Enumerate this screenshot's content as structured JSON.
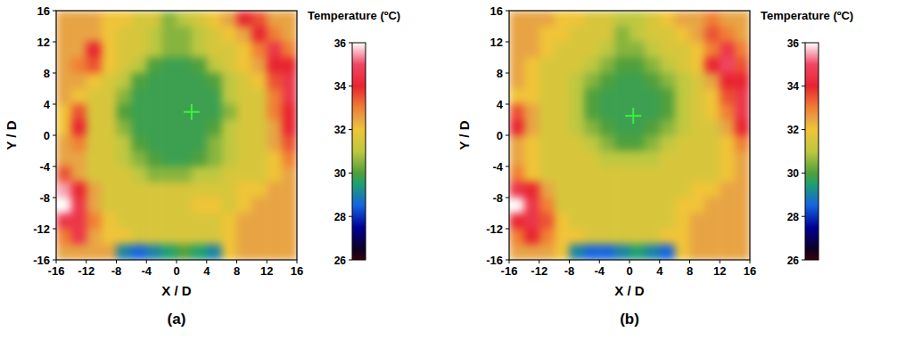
{
  "chart_data": [
    {
      "type": "heatmap",
      "label": "(a)",
      "x_label": "X / D",
      "y_label": "Y / D",
      "xlim": [
        -16,
        16
      ],
      "ylim": [
        -16,
        16
      ],
      "xticks": [
        -16,
        -12,
        -8,
        -4,
        0,
        4,
        8,
        12,
        16
      ],
      "yticks": [
        -16,
        -12,
        -8,
        -4,
        0,
        4,
        8,
        12,
        16
      ],
      "cross": [
        2,
        3
      ],
      "colorbar": {
        "title": "Temperature (ºC)",
        "range": [
          26,
          36
        ],
        "ticks": [
          26,
          28,
          30,
          32,
          34,
          36
        ]
      },
      "cells": [
        [
          32.5,
          32.5,
          32.5,
          32,
          32,
          31.5,
          31.5,
          30.5,
          31,
          31.5,
          32,
          32.5,
          34,
          33.5,
          32.5,
          32.5
        ],
        [
          32.5,
          32.5,
          32.5,
          32,
          31.5,
          31.5,
          31,
          30.5,
          30.5,
          31,
          31.5,
          32,
          32.5,
          34,
          33,
          32.5
        ],
        [
          32.5,
          32.5,
          34,
          32,
          31.5,
          31.5,
          31,
          30.5,
          30.5,
          31,
          31.5,
          31.5,
          32,
          33,
          34.5,
          33
        ],
        [
          32.5,
          33,
          33.5,
          32,
          31.5,
          31,
          30,
          29.8,
          29.8,
          30,
          31,
          31.5,
          32,
          32.5,
          34,
          34
        ],
        [
          32.5,
          32.5,
          32,
          31.5,
          31,
          30,
          29.8,
          29.8,
          29.8,
          29.8,
          30,
          31,
          31.5,
          32,
          33.5,
          34.5
        ],
        [
          32.5,
          32,
          31.5,
          31.5,
          30.5,
          29.8,
          29.8,
          29.8,
          29.8,
          29.8,
          29.8,
          31,
          31.5,
          31.5,
          33,
          34.5
        ],
        [
          32,
          33.5,
          31.5,
          31.5,
          30,
          29.8,
          29.8,
          29.8,
          29.8,
          29.8,
          29.8,
          30.5,
          31.5,
          31.5,
          33,
          34
        ],
        [
          32,
          34,
          31.5,
          31.5,
          30.5,
          29.8,
          29.8,
          29.8,
          29.8,
          29.8,
          30,
          31,
          31.5,
          31.5,
          32.5,
          34
        ],
        [
          32.5,
          33,
          31.5,
          31.5,
          31,
          30,
          29.8,
          29.8,
          29.8,
          29.8,
          30.5,
          31,
          31.5,
          31.5,
          32.5,
          33.5
        ],
        [
          32.5,
          32.5,
          31.5,
          31.5,
          31,
          30.5,
          30,
          29.8,
          29.8,
          30,
          30.5,
          31,
          31.5,
          31.5,
          32,
          33
        ],
        [
          33.5,
          32.5,
          31.5,
          31.5,
          31.5,
          31,
          30.5,
          30.5,
          30.5,
          31,
          31,
          31.5,
          31.5,
          31.5,
          32,
          32.5
        ],
        [
          35.5,
          34,
          32.5,
          31.5,
          31.5,
          31.5,
          31.5,
          31.5,
          31.5,
          31.5,
          31.5,
          31.5,
          32,
          32,
          32.5,
          32.5
        ],
        [
          36,
          34.5,
          32.5,
          31.5,
          31.5,
          31.5,
          31.5,
          31.5,
          31.5,
          32,
          32,
          31.5,
          32,
          32.5,
          32.5,
          32.5
        ],
        [
          34.5,
          34.5,
          33,
          32,
          31.5,
          31.5,
          31.5,
          31.5,
          31.5,
          31.5,
          31.5,
          32,
          32.5,
          32.5,
          32.5,
          32.5
        ],
        [
          33,
          34.5,
          32.5,
          32,
          32,
          31.5,
          31.5,
          31.5,
          31.5,
          31.5,
          31.5,
          32,
          32.5,
          32.5,
          32.5,
          32.5
        ],
        [
          32.5,
          32.5,
          32.5,
          32.5,
          29,
          28.5,
          29,
          29.5,
          30,
          29.5,
          29,
          32,
          32.5,
          32.5,
          32.5,
          32.5
        ]
      ]
    },
    {
      "type": "heatmap",
      "label": "(b)",
      "x_label": "X / D",
      "y_label": "Y / D",
      "xlim": [
        -16,
        16
      ],
      "ylim": [
        -16,
        16
      ],
      "xticks": [
        -16,
        -12,
        -8,
        -4,
        0,
        4,
        8,
        12,
        16
      ],
      "yticks": [
        -16,
        -12,
        -8,
        -4,
        0,
        4,
        8,
        12,
        16
      ],
      "cross": [
        0.5,
        2.5
      ],
      "colorbar": {
        "title": "Temperature (ºC)",
        "range": [
          26,
          36
        ],
        "ticks": [
          26,
          28,
          30,
          32,
          34,
          36
        ]
      },
      "cells": [
        [
          32.5,
          32.5,
          32.5,
          32,
          32,
          31.5,
          31.5,
          31,
          31,
          31.5,
          32,
          32.5,
          32.5,
          33,
          32.5,
          32.5
        ],
        [
          32.5,
          32.5,
          32,
          32,
          31.5,
          31.5,
          31.5,
          30.5,
          31,
          31.5,
          31.5,
          32,
          32.5,
          33.5,
          33,
          32.5
        ],
        [
          32.5,
          32.5,
          32,
          31.5,
          31.5,
          31.5,
          31,
          30.5,
          30.5,
          31,
          31.5,
          31.5,
          32,
          33,
          34.5,
          33
        ],
        [
          32.5,
          32,
          31.5,
          31.5,
          31.5,
          31,
          30.5,
          30,
          30,
          30.5,
          31,
          31.5,
          32,
          34,
          35,
          33.5
        ],
        [
          32.5,
          32,
          31.5,
          31.5,
          31,
          30.5,
          30,
          29.8,
          29.8,
          30,
          30.5,
          31,
          31.5,
          32.5,
          34,
          34
        ],
        [
          32,
          32,
          31.5,
          31.5,
          31,
          30,
          29.8,
          29.8,
          29.8,
          29.8,
          30,
          31,
          31.5,
          32,
          33.5,
          34.5
        ],
        [
          33.5,
          32.5,
          31.5,
          31.5,
          31,
          30,
          29.8,
          29.8,
          29.8,
          29.8,
          30,
          31,
          31.5,
          32,
          33,
          34.5
        ],
        [
          34,
          32.5,
          31.5,
          31.5,
          31,
          30.5,
          30,
          29.8,
          29.8,
          30,
          30.5,
          31,
          31.5,
          31.5,
          32.5,
          34
        ],
        [
          32.5,
          32,
          31.5,
          31.5,
          31.5,
          31,
          30.5,
          30,
          30,
          30.5,
          31,
          31.5,
          31.5,
          31.5,
          32,
          33
        ],
        [
          32.5,
          32,
          31.5,
          31.5,
          31.5,
          31.5,
          31,
          31,
          31,
          31,
          31.5,
          31.5,
          31.5,
          31.5,
          32,
          32.5
        ],
        [
          33,
          32,
          31.5,
          31.5,
          31.5,
          31.5,
          31.5,
          31.5,
          31.5,
          31.5,
          31.5,
          31.5,
          31.5,
          31.5,
          32,
          32.5
        ],
        [
          34.5,
          34,
          32.5,
          31.5,
          31.5,
          31.5,
          31.5,
          31.5,
          31.5,
          31.5,
          31.5,
          31.5,
          32,
          32,
          32.5,
          32.5
        ],
        [
          36,
          34.5,
          33,
          31.5,
          31.5,
          31.5,
          31.5,
          31.5,
          31.5,
          31.5,
          31.5,
          32,
          32,
          32.5,
          32.5,
          32.5
        ],
        [
          34,
          34.5,
          33.5,
          32,
          31.5,
          31.5,
          31.5,
          31.5,
          31.5,
          31.5,
          31.5,
          32,
          32.5,
          32.5,
          32.5,
          32.5
        ],
        [
          33,
          34,
          33,
          32,
          32,
          31.5,
          31.5,
          31.5,
          31.5,
          31.5,
          32,
          32,
          32.5,
          32.5,
          32.5,
          32.5
        ],
        [
          32.5,
          32.5,
          32.5,
          32,
          29,
          28.5,
          28.5,
          29,
          29.5,
          29,
          28.5,
          32,
          32.5,
          32.5,
          32.5,
          32.5
        ]
      ]
    }
  ]
}
